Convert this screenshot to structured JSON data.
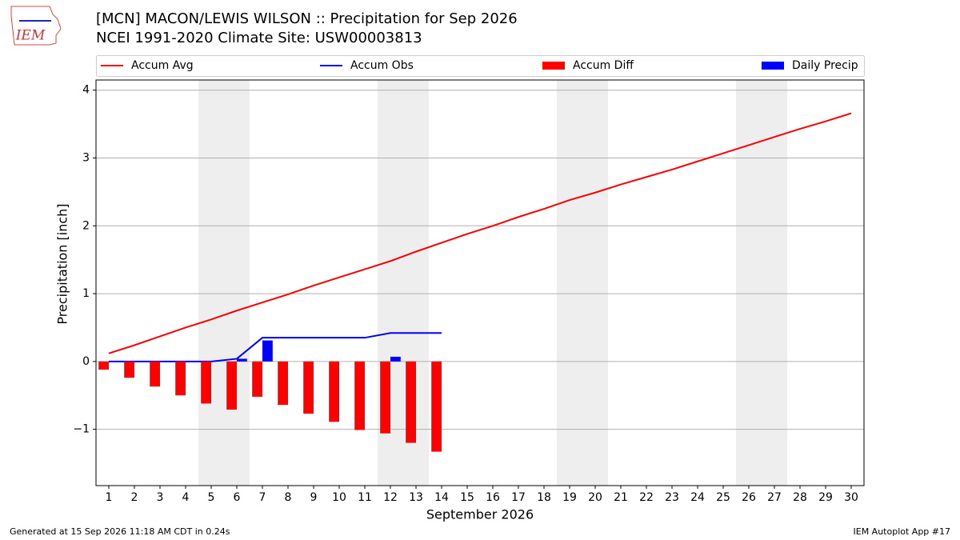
{
  "chart_data": {
    "type": "line",
    "title": "[MCN] MACON/LEWIS WILSON :: Precipitation for Sep 2026",
    "subtitle": "NCEI 1991-2020 Climate Site: USW00003813",
    "logo_text": "IEM",
    "xlabel": "September 2026",
    "ylabel": "Precipitation [inch]",
    "x": [
      1,
      2,
      3,
      4,
      5,
      6,
      7,
      8,
      9,
      10,
      11,
      12,
      13,
      14,
      15,
      16,
      17,
      18,
      19,
      20,
      21,
      22,
      23,
      24,
      25,
      26,
      27,
      28,
      29,
      30
    ],
    "series": [
      {
        "name": "Accum Avg",
        "type": "line",
        "color": "#ff0000",
        "values": [
          0.12,
          0.24,
          0.37,
          0.5,
          0.62,
          0.75,
          0.87,
          0.99,
          1.12,
          1.24,
          1.36,
          1.48,
          1.62,
          1.75,
          1.88,
          2.0,
          2.13,
          2.25,
          2.38,
          2.49,
          2.61,
          2.72,
          2.83,
          2.95,
          3.07,
          3.19,
          3.31,
          3.43,
          3.54,
          3.66
        ]
      },
      {
        "name": "Accum Obs",
        "type": "line",
        "color": "#0000ff",
        "values": [
          0,
          0,
          0,
          0,
          0,
          0.04,
          0.35,
          0.35,
          0.35,
          0.35,
          0.35,
          0.42,
          0.42,
          0.42,
          null,
          null,
          null,
          null,
          null,
          null,
          null,
          null,
          null,
          null,
          null,
          null,
          null,
          null,
          null,
          null
        ]
      },
      {
        "name": "Accum Diff",
        "type": "bar",
        "color": "#ff0000",
        "values": [
          -0.12,
          -0.24,
          -0.37,
          -0.5,
          -0.62,
          -0.71,
          -0.52,
          -0.64,
          -0.77,
          -0.89,
          -1.01,
          -1.06,
          -1.2,
          -1.33,
          null,
          null,
          null,
          null,
          null,
          null,
          null,
          null,
          null,
          null,
          null,
          null,
          null,
          null,
          null,
          null
        ]
      },
      {
        "name": "Daily Precip",
        "type": "bar",
        "color": "#0000ff",
        "values": [
          0,
          0,
          0,
          0,
          0,
          0.04,
          0.31,
          0,
          0,
          0,
          0,
          0.07,
          0,
          0,
          null,
          null,
          null,
          null,
          null,
          null,
          null,
          null,
          null,
          null,
          null,
          null,
          null,
          null,
          null,
          null
        ]
      }
    ],
    "shaded_spans": [
      [
        4.5,
        6.5
      ],
      [
        11.5,
        13.5
      ],
      [
        18.5,
        20.5
      ],
      [
        25.5,
        27.5
      ]
    ],
    "xlim": [
      0.5,
      30.5
    ],
    "ylim": [
      -1.83,
      4.15
    ],
    "xticks": [
      1,
      2,
      3,
      4,
      5,
      6,
      7,
      8,
      9,
      10,
      11,
      12,
      13,
      14,
      15,
      16,
      17,
      18,
      19,
      20,
      21,
      22,
      23,
      24,
      25,
      26,
      27,
      28,
      29,
      30
    ],
    "yticks": [
      {
        "value": -1,
        "label": "−1"
      },
      0,
      1,
      2,
      3,
      4
    ],
    "grid": true,
    "legend": "top",
    "footer_left": "Generated at 15 Sep 2026 11:18 AM CDT in 0.24s",
    "footer_right": "IEM Autoplot App #17"
  }
}
